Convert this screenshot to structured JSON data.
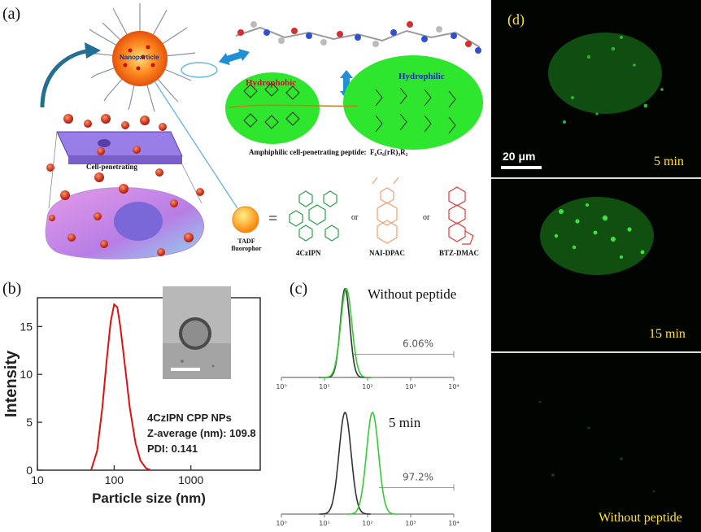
{
  "panel_a": {
    "label": "(a)",
    "nanoparticle": "Nanoparticle",
    "hydrophobic": "Hydrophobic",
    "hydrophilic": "Hydrophilic",
    "peptide_caption": "Amphiphilic cell-penetrating peptide:",
    "peptide_formula": "F₆G₆(rR)₃R₂",
    "cell_penetrating": "Cell-penetrating",
    "tadf_line1": "TADF",
    "tadf_line2": "fluorophor",
    "equals": "=",
    "or1": "or",
    "or2": "or",
    "molecules": [
      "4CzIPN",
      "NAI-DPAC",
      "BTZ-DMAC"
    ],
    "colors": {
      "nanoparticle": "#ff7a1a",
      "blob": "#2ee62e",
      "hydrophobic_text": "#c0182a",
      "hydrophilic_text": "#1a2fb0",
      "membrane": "#9a7ee8"
    }
  },
  "panel_b": {
    "label": "(b)",
    "info": [
      "4CzIPN CPP NPs",
      "Z-average (nm): 109.8",
      "PDI: 0.141"
    ],
    "chart_data": {
      "type": "line",
      "xlabel": "Particle size (nm)",
      "ylabel": "Intensity",
      "xscale": "log",
      "xlim": [
        10,
        8000
      ],
      "ylim": [
        0,
        18
      ],
      "xticks": [
        10,
        100,
        1000
      ],
      "yticks": [
        0,
        5,
        10,
        15
      ],
      "series": [
        {
          "color": "#e01010",
          "x": [
            50,
            60,
            70,
            80,
            90,
            100,
            110,
            120,
            140,
            160,
            190,
            220,
            260,
            300
          ],
          "y": [
            0,
            2,
            6.5,
            11.5,
            15.5,
            17.3,
            17.0,
            15.0,
            10.5,
            6.5,
            2.8,
            1.0,
            0.2,
            0
          ]
        }
      ]
    }
  },
  "panel_c": {
    "label": "(c)",
    "top_text": "Without peptide",
    "bottom_text": "5 min",
    "chart_data": [
      {
        "type": "line",
        "xscale": "log",
        "xlim": [
          1,
          10000
        ],
        "xticks": [
          "10⁰",
          "10¹",
          "10²",
          "10³",
          "10⁴"
        ],
        "gate_percent": "6.06%",
        "series": [
          {
            "color": "#333333",
            "center": 30,
            "width": 0.11
          },
          {
            "color": "#33cc33",
            "center": 32,
            "width": 0.13
          }
        ]
      },
      {
        "type": "line",
        "xscale": "log",
        "xlim": [
          1,
          10000
        ],
        "xticks": [
          "10⁰",
          "10¹",
          "10²",
          "10³",
          "10⁴"
        ],
        "gate_percent": "97.2%",
        "series": [
          {
            "color": "#333333",
            "center": 30,
            "width": 0.14
          },
          {
            "color": "#33cc33",
            "center": 130,
            "width": 0.14
          }
        ]
      }
    ]
  },
  "panel_d": {
    "label": "(d)",
    "scale_bar": "20 μm",
    "frames": [
      "5 min",
      "15 min",
      "Without peptide"
    ],
    "label_color": "#ffe23a"
  }
}
